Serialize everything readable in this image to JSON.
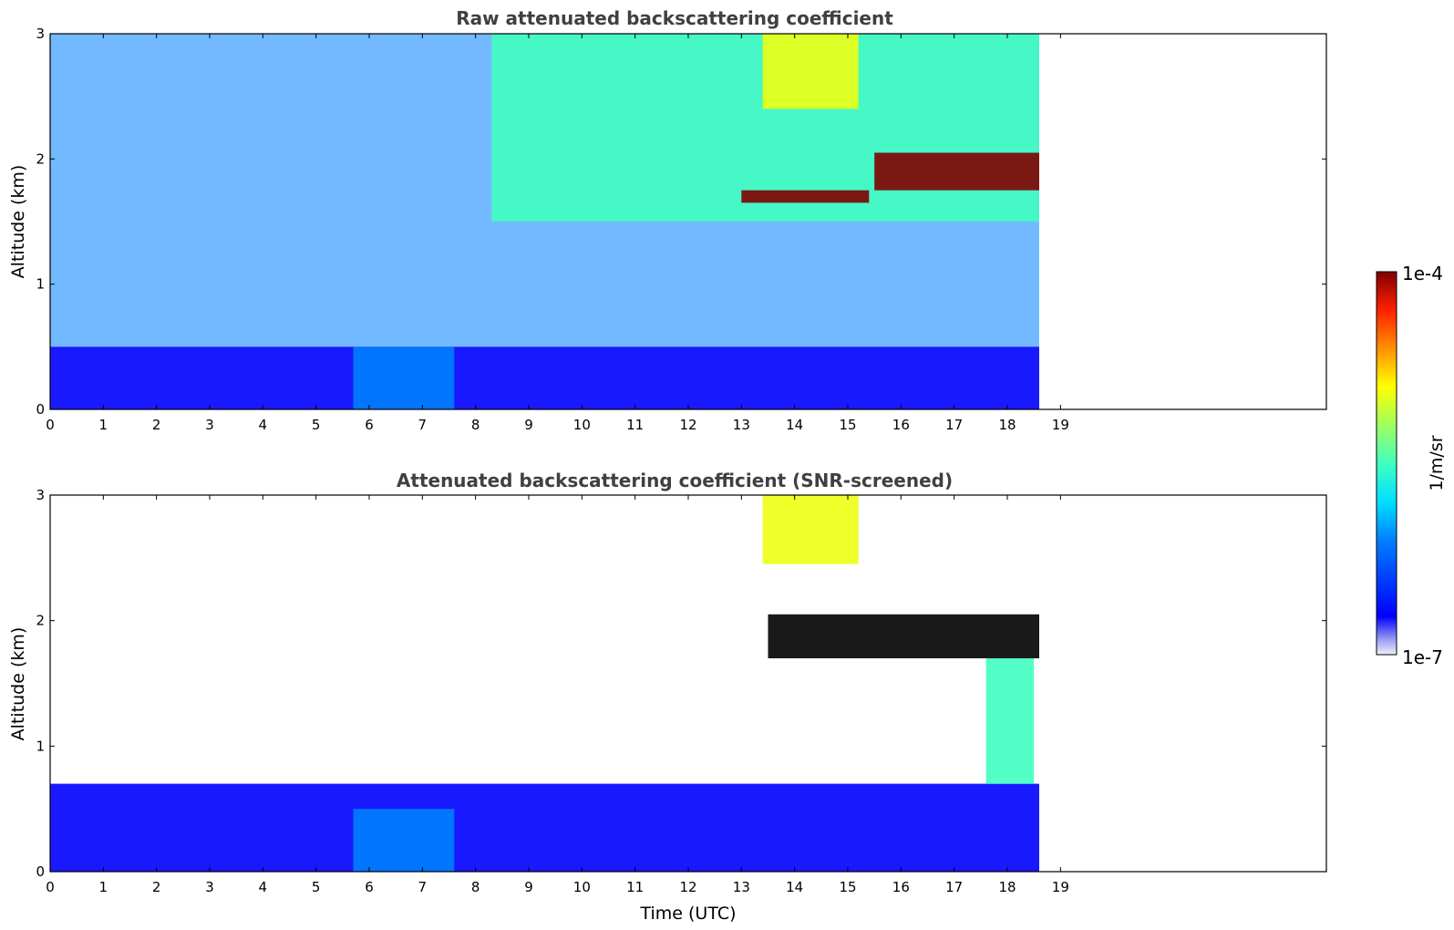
{
  "chart_data": [
    {
      "type": "heatmap",
      "title": "Raw attenuated backscattering coefficient",
      "xlabel": "",
      "ylabel": "Altitude (km)",
      "xlim": [
        0,
        24
      ],
      "ylim": [
        0,
        3
      ],
      "xticks": [
        0,
        1,
        2,
        3,
        4,
        5,
        6,
        7,
        8,
        9,
        10,
        11,
        12,
        13,
        14,
        15,
        16,
        17,
        18,
        19
      ],
      "yticks": [
        0,
        1,
        2,
        3
      ],
      "data_time_range": [
        0,
        18.6
      ],
      "color_scale": "log",
      "features": [
        {
          "kind": "noisy background",
          "time": [
            0,
            18.6
          ],
          "altitude": [
            0.5,
            3
          ],
          "level": "low-mid"
        },
        {
          "kind": "surface aerosol layer",
          "time": [
            0,
            18.6
          ],
          "altitude": [
            0,
            0.5
          ],
          "level": "low"
        },
        {
          "kind": "enhanced aerosol",
          "time": [
            5.7,
            7.6
          ],
          "altitude": [
            0,
            0.5
          ],
          "level": "low-mid"
        },
        {
          "kind": "elevated aerosol",
          "time": [
            8.3,
            18.6
          ],
          "altitude": [
            1.5,
            3
          ],
          "level": "mid"
        },
        {
          "kind": "elevated aerosol",
          "time": [
            13.4,
            15.2
          ],
          "altitude": [
            2.4,
            3
          ],
          "level": "high"
        },
        {
          "kind": "cloud layer",
          "time": [
            15.5,
            18.6
          ],
          "altitude": [
            1.75,
            2.05
          ],
          "level": "max"
        },
        {
          "kind": "cloud fragments",
          "time": [
            13,
            15.4
          ],
          "altitude": [
            1.65,
            1.75
          ],
          "level": "max"
        }
      ]
    },
    {
      "type": "heatmap",
      "title": "Attenuated backscattering coefficient (SNR-screened)",
      "xlabel": "Time (UTC)",
      "ylabel": "Altitude (km)",
      "xlim": [
        0,
        24
      ],
      "ylim": [
        0,
        3
      ],
      "xticks": [
        0,
        1,
        2,
        3,
        4,
        5,
        6,
        7,
        8,
        9,
        10,
        11,
        12,
        13,
        14,
        15,
        16,
        17,
        18,
        19
      ],
      "yticks": [
        0,
        1,
        2,
        3
      ],
      "data_time_range": [
        0,
        18.6
      ],
      "color_scale": "log",
      "features": [
        {
          "kind": "boundary layer",
          "time": [
            0,
            18.6
          ],
          "altitude": [
            0,
            0.7
          ],
          "level": "low"
        },
        {
          "kind": "enhanced aerosol",
          "time": [
            5.7,
            7.6
          ],
          "altitude": [
            0,
            0.5
          ],
          "level": "low-mid"
        },
        {
          "kind": "elevated aerosol",
          "time": [
            13.4,
            15.2
          ],
          "altitude": [
            2.45,
            3
          ],
          "level": "high"
        },
        {
          "kind": "cloud layer",
          "time": [
            13.5,
            18.6
          ],
          "altitude": [
            1.7,
            2.05
          ],
          "level": "saturated"
        },
        {
          "kind": "virga",
          "time": [
            17.6,
            18.5
          ],
          "altitude": [
            0.7,
            1.7
          ],
          "level": "mid"
        }
      ]
    }
  ],
  "colorbar": {
    "label": "1/m/sr",
    "min_label": "1e-7",
    "max_label": "1e-4",
    "colormap": "jet"
  }
}
